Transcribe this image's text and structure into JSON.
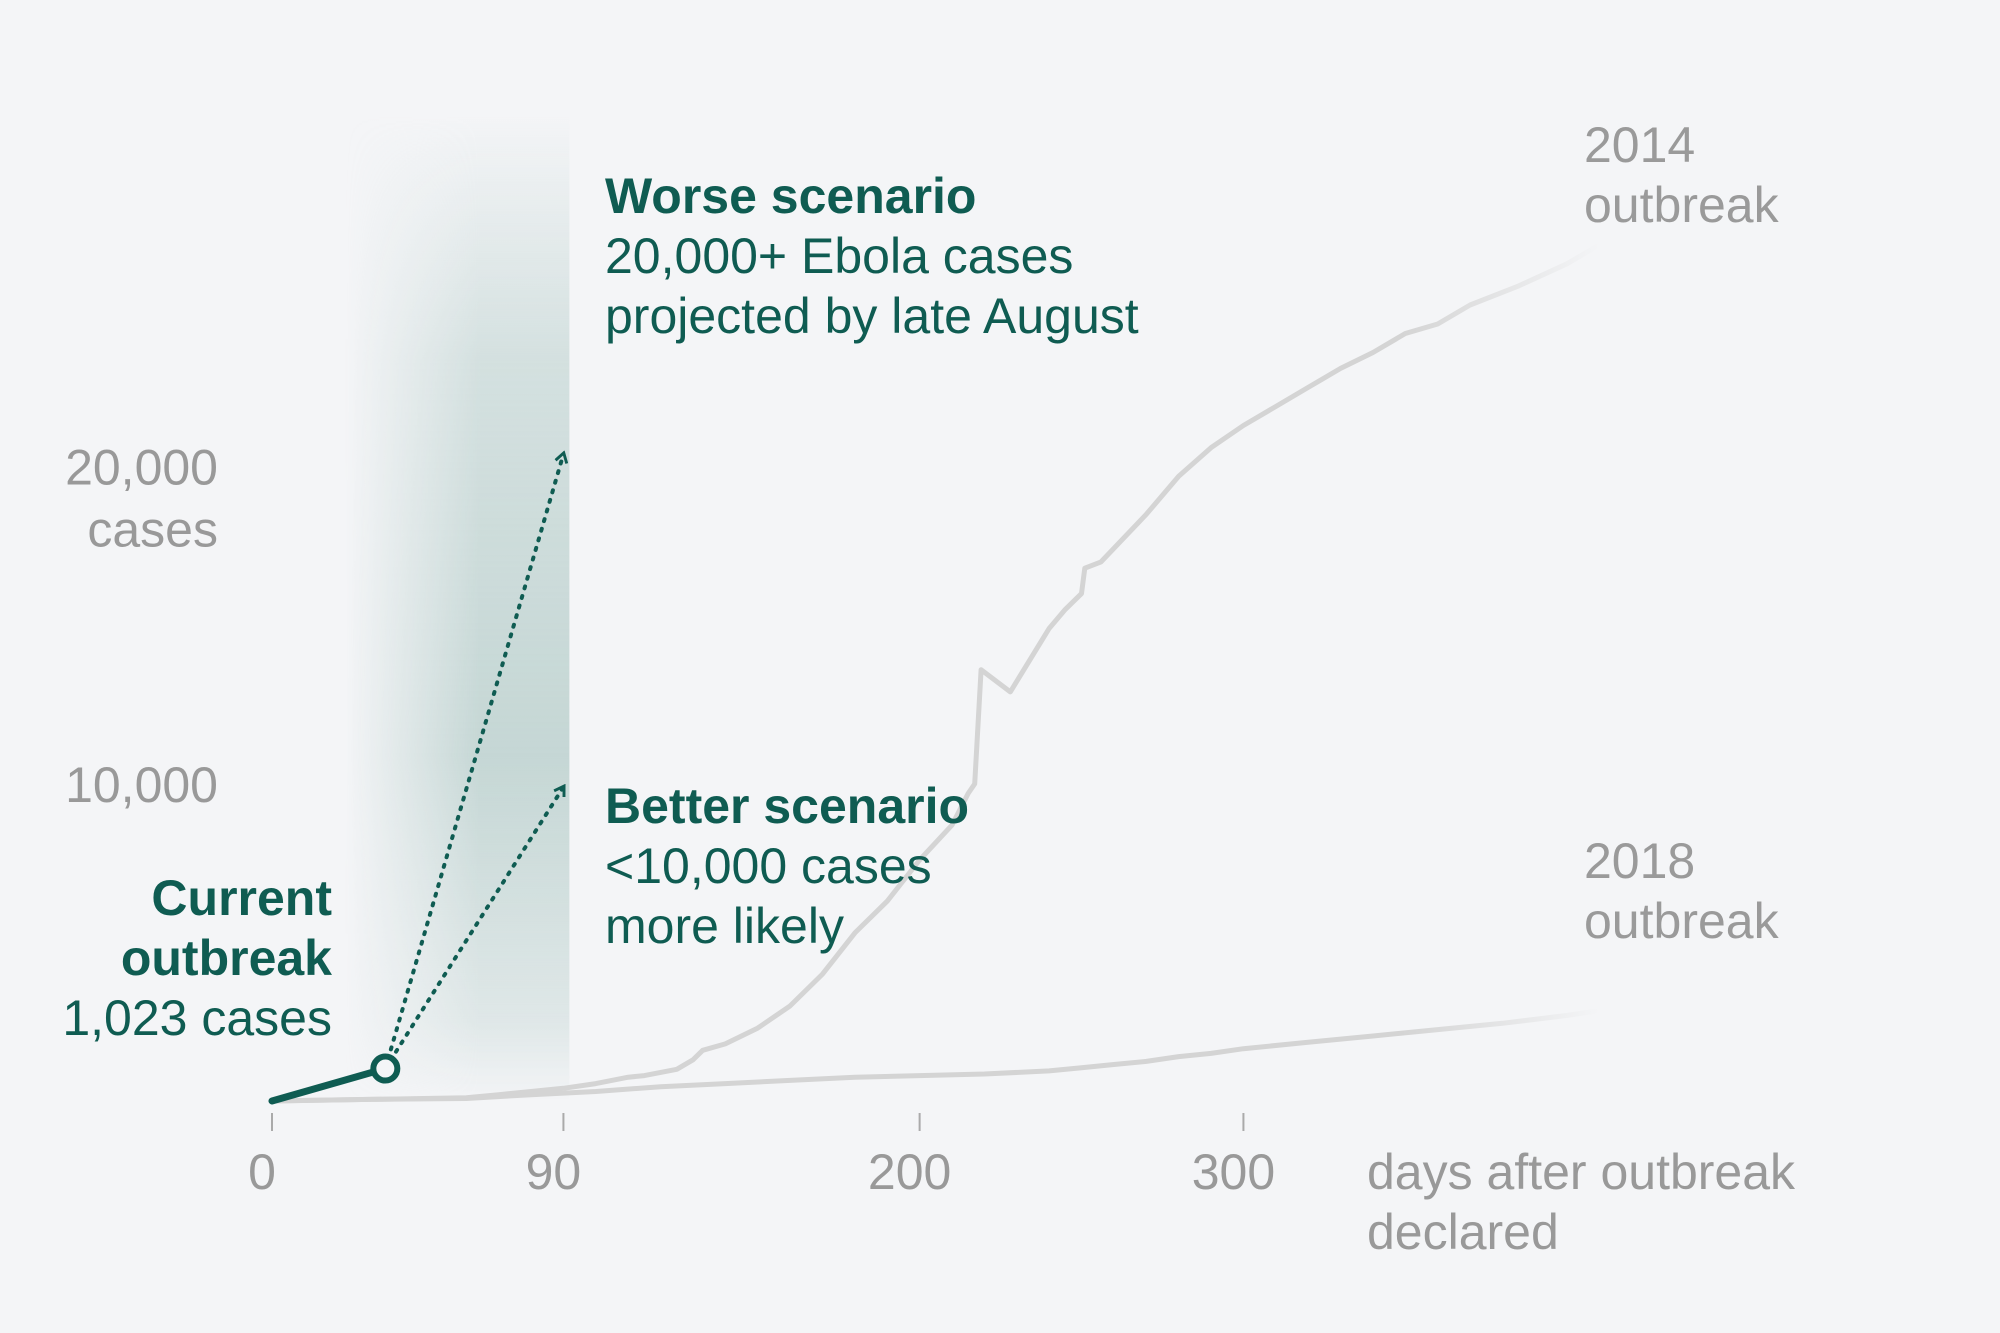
{
  "chart_data": {
    "type": "line",
    "xlabel": [
      "days after outbreak",
      "declared"
    ],
    "xlim": [
      0,
      525
    ],
    "ylim": [
      0,
      28000
    ],
    "x_ticks": [
      {
        "value": 0,
        "label": "0"
      },
      {
        "value": 90,
        "label": "90"
      },
      {
        "value": 200,
        "label": "200"
      },
      {
        "value": 300,
        "label": "300"
      }
    ],
    "y_ticks": [
      {
        "value": 10000,
        "label": [
          "10,000"
        ]
      },
      {
        "value": 20000,
        "label": [
          "20,000",
          "cases"
        ]
      }
    ],
    "grid": true,
    "series": [
      {
        "name": [
          "2014",
          "outbreak"
        ],
        "color": "#d6d6d6",
        "points": [
          [
            0,
            0
          ],
          [
            30,
            50
          ],
          [
            60,
            100
          ],
          [
            70,
            200
          ],
          [
            80,
            300
          ],
          [
            90,
            400
          ],
          [
            100,
            550
          ],
          [
            110,
            750
          ],
          [
            115,
            800
          ],
          [
            125,
            1000
          ],
          [
            130,
            1300
          ],
          [
            133,
            1600
          ],
          [
            140,
            1800
          ],
          [
            150,
            2300
          ],
          [
            160,
            3000
          ],
          [
            170,
            4000
          ],
          [
            180,
            5300
          ],
          [
            190,
            6300
          ],
          [
            200,
            7600
          ],
          [
            210,
            8700
          ],
          [
            215,
            9700
          ],
          [
            217,
            10000
          ],
          [
            219,
            13600
          ],
          [
            228,
            12900
          ],
          [
            240,
            14900
          ],
          [
            245,
            15500
          ],
          [
            250,
            16000
          ],
          [
            251,
            16800
          ],
          [
            256,
            17000
          ],
          [
            270,
            18500
          ],
          [
            280,
            19700
          ],
          [
            290,
            20600
          ],
          [
            300,
            21300
          ],
          [
            310,
            21900
          ],
          [
            320,
            22500
          ],
          [
            330,
            23100
          ],
          [
            340,
            23600
          ],
          [
            350,
            24200
          ],
          [
            360,
            24500
          ],
          [
            370,
            25100
          ],
          [
            385,
            25700
          ],
          [
            400,
            26400
          ],
          [
            410,
            27000
          ]
        ]
      },
      {
        "name": [
          "2018",
          "outbreak"
        ],
        "color": "#d6d6d6",
        "points": [
          [
            0,
            0
          ],
          [
            30,
            50
          ],
          [
            60,
            80
          ],
          [
            80,
            200
          ],
          [
            100,
            300
          ],
          [
            120,
            450
          ],
          [
            140,
            550
          ],
          [
            160,
            650
          ],
          [
            180,
            750
          ],
          [
            200,
            800
          ],
          [
            220,
            850
          ],
          [
            240,
            950
          ],
          [
            250,
            1050
          ],
          [
            260,
            1150
          ],
          [
            270,
            1250
          ],
          [
            280,
            1400
          ],
          [
            290,
            1500
          ],
          [
            300,
            1650
          ],
          [
            320,
            1850
          ],
          [
            340,
            2050
          ],
          [
            360,
            2250
          ],
          [
            380,
            2450
          ],
          [
            400,
            2700
          ],
          [
            410,
            2850
          ]
        ]
      },
      {
        "name": [
          "Current",
          "outbreak"
        ],
        "color": "#0f5c52",
        "points": [
          [
            0,
            0
          ],
          [
            35,
            1023
          ]
        ],
        "endpoint_label": "1,023 cases"
      }
    ],
    "projections": [
      {
        "name": "Worse scenario",
        "from": [
          35,
          1023
        ],
        "to": [
          90,
          20400
        ],
        "lines": [
          "20,000+ Ebola cases",
          "projected by late August"
        ]
      },
      {
        "name": "Better scenario",
        "from": [
          35,
          1023
        ],
        "to": [
          90,
          9900
        ],
        "lines": [
          "<10,000 cases",
          "more likely"
        ]
      }
    ],
    "projection_window": [
      35,
      90
    ],
    "colors": {
      "accent": "#0f5c52",
      "grid": "#cfd2d6",
      "muted": "#999999",
      "background": "#f4f5f7"
    }
  }
}
